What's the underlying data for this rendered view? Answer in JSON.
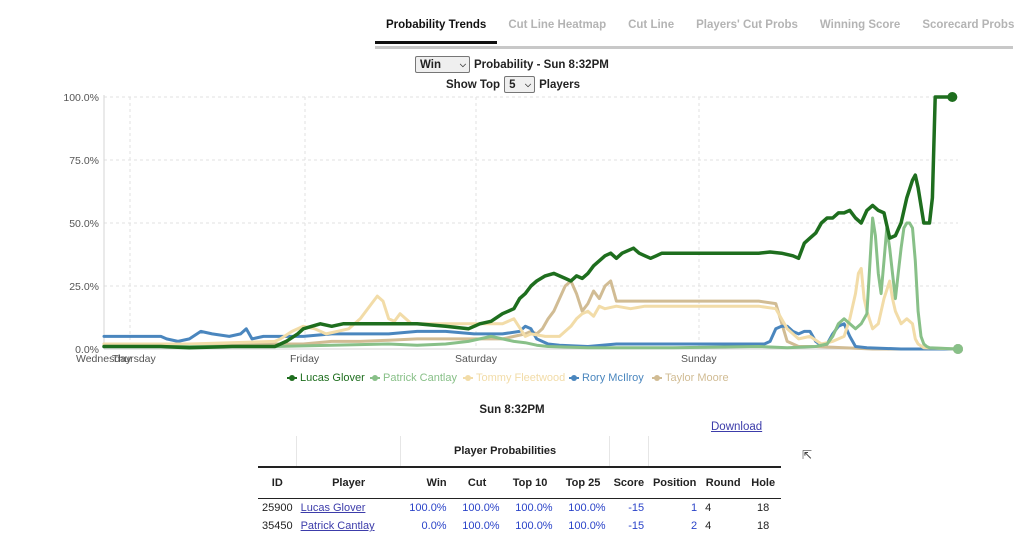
{
  "tabs": [
    {
      "label": "Probability Trends",
      "active": true
    },
    {
      "label": "Cut Line Heatmap",
      "active": false
    },
    {
      "label": "Cut Line",
      "active": false
    },
    {
      "label": "Players' Cut Probs",
      "active": false
    },
    {
      "label": "Winning Score",
      "active": false
    },
    {
      "label": "Scorecard Probs",
      "active": false
    }
  ],
  "controls": {
    "metric_value": "Win",
    "title_text": "Probability - Sun 8:32PM",
    "show_top_label": "Show Top",
    "top_value": "5",
    "players_label": "Players"
  },
  "chart_data": {
    "type": "line",
    "x_labels": [
      "Wednesday",
      "Thursday",
      "Friday",
      "Saturday",
      "Sunday"
    ],
    "y_ticks": [
      "0.0%",
      "25.0%",
      "50.0%",
      "75.0%",
      "100.0%"
    ],
    "ylim": [
      0,
      100
    ],
    "grid": true,
    "legend_position": "bottom",
    "series": [
      {
        "name": "Lucas Glover",
        "color": "#1e6e1e",
        "points": [
          [
            0,
            1
          ],
          [
            20,
            1
          ],
          [
            30,
            0.5
          ],
          [
            45,
            1
          ],
          [
            60,
            1
          ],
          [
            62,
            2
          ],
          [
            64,
            3
          ],
          [
            68,
            6
          ],
          [
            70,
            8
          ],
          [
            73,
            9
          ],
          [
            76,
            10
          ],
          [
            80,
            9
          ],
          [
            84,
            10
          ],
          [
            90,
            10
          ],
          [
            100,
            10
          ],
          [
            110,
            10
          ],
          [
            120,
            9
          ],
          [
            128,
            8
          ],
          [
            132,
            10
          ],
          [
            136,
            11
          ],
          [
            140,
            14
          ],
          [
            144,
            16
          ],
          [
            146,
            20
          ],
          [
            148,
            22
          ],
          [
            150,
            25
          ],
          [
            152,
            27
          ],
          [
            155,
            29
          ],
          [
            158,
            30
          ],
          [
            162,
            28
          ],
          [
            164,
            27
          ],
          [
            166,
            29
          ],
          [
            168,
            28
          ],
          [
            170,
            30
          ],
          [
            172,
            33
          ],
          [
            174,
            35
          ],
          [
            176,
            37
          ],
          [
            178,
            38
          ],
          [
            180,
            36
          ],
          [
            182,
            38
          ],
          [
            184,
            39
          ],
          [
            186,
            40
          ],
          [
            188,
            38
          ],
          [
            190,
            37
          ],
          [
            192,
            36
          ],
          [
            194,
            37
          ],
          [
            196,
            38
          ],
          [
            200,
            38
          ],
          [
            210,
            38
          ],
          [
            230,
            38
          ],
          [
            234,
            38.5
          ],
          [
            238,
            38
          ],
          [
            242,
            37
          ],
          [
            244,
            36
          ],
          [
            246,
            42
          ],
          [
            248,
            44
          ],
          [
            250,
            46
          ],
          [
            252,
            50
          ],
          [
            254,
            52
          ],
          [
            256,
            52
          ],
          [
            258,
            54
          ],
          [
            260,
            54
          ],
          [
            262,
            55
          ],
          [
            264,
            52
          ],
          [
            266,
            50
          ],
          [
            268,
            55
          ],
          [
            270,
            57
          ],
          [
            272,
            55
          ],
          [
            274,
            54
          ],
          [
            276,
            44
          ],
          [
            278,
            45
          ],
          [
            280,
            50
          ],
          [
            282,
            60
          ],
          [
            284,
            67
          ],
          [
            285,
            69
          ],
          [
            286,
            64
          ],
          [
            288,
            50
          ],
          [
            289,
            50
          ],
          [
            290,
            50
          ],
          [
            291,
            60
          ],
          [
            292,
            100
          ],
          [
            294,
            100
          ],
          [
            298,
            100
          ]
        ]
      },
      {
        "name": "Patrick Cantlay",
        "color": "#88c088",
        "points": [
          [
            0,
            1
          ],
          [
            20,
            1
          ],
          [
            40,
            1
          ],
          [
            60,
            1
          ],
          [
            80,
            1.5
          ],
          [
            100,
            2
          ],
          [
            110,
            1.5
          ],
          [
            120,
            2
          ],
          [
            128,
            3
          ],
          [
            132,
            4
          ],
          [
            136,
            5
          ],
          [
            140,
            4
          ],
          [
            144,
            3
          ],
          [
            148,
            2.5
          ],
          [
            152,
            1.5
          ],
          [
            156,
            1
          ],
          [
            170,
            0.5
          ],
          [
            200,
            0.5
          ],
          [
            230,
            1
          ],
          [
            240,
            0.5
          ],
          [
            250,
            1
          ],
          [
            254,
            2
          ],
          [
            256,
            5
          ],
          [
            258,
            10
          ],
          [
            260,
            12
          ],
          [
            262,
            10
          ],
          [
            264,
            8
          ],
          [
            266,
            10
          ],
          [
            268,
            14
          ],
          [
            270,
            52
          ],
          [
            271,
            45
          ],
          [
            272,
            30
          ],
          [
            273,
            22
          ],
          [
            274,
            35
          ],
          [
            275,
            48
          ],
          [
            276,
            40
          ],
          [
            277,
            30
          ],
          [
            278,
            20
          ],
          [
            279,
            30
          ],
          [
            280,
            40
          ],
          [
            281,
            48
          ],
          [
            282,
            50
          ],
          [
            283,
            50
          ],
          [
            284,
            48
          ],
          [
            285,
            35
          ],
          [
            286,
            15
          ],
          [
            287,
            5
          ],
          [
            288,
            2
          ],
          [
            289,
            1
          ],
          [
            290,
            0.5
          ],
          [
            300,
            0
          ]
        ]
      },
      {
        "name": "Tommy Fleetwood",
        "color": "#f2dca8",
        "points": [
          [
            0,
            2
          ],
          [
            30,
            2
          ],
          [
            60,
            3
          ],
          [
            62,
            4
          ],
          [
            66,
            7
          ],
          [
            70,
            9
          ],
          [
            74,
            8
          ],
          [
            78,
            6
          ],
          [
            82,
            7
          ],
          [
            86,
            8
          ],
          [
            90,
            12
          ],
          [
            94,
            18
          ],
          [
            96,
            21
          ],
          [
            98,
            19
          ],
          [
            100,
            12
          ],
          [
            102,
            11
          ],
          [
            104,
            14
          ],
          [
            108,
            10
          ],
          [
            112,
            10
          ],
          [
            120,
            10
          ],
          [
            130,
            10
          ],
          [
            140,
            10
          ],
          [
            144,
            12
          ],
          [
            148,
            5
          ],
          [
            150,
            6
          ],
          [
            155,
            5
          ],
          [
            160,
            5
          ],
          [
            164,
            9
          ],
          [
            166,
            12
          ],
          [
            168,
            14
          ],
          [
            170,
            15
          ],
          [
            172,
            13
          ],
          [
            174,
            17
          ],
          [
            176,
            16
          ],
          [
            180,
            17
          ],
          [
            185,
            16
          ],
          [
            190,
            17
          ],
          [
            200,
            17
          ],
          [
            210,
            17
          ],
          [
            230,
            17
          ],
          [
            236,
            16
          ],
          [
            240,
            8
          ],
          [
            244,
            4
          ],
          [
            248,
            5
          ],
          [
            252,
            2
          ],
          [
            256,
            3
          ],
          [
            260,
            5
          ],
          [
            262,
            12
          ],
          [
            264,
            22
          ],
          [
            265,
            30
          ],
          [
            266,
            32
          ],
          [
            267,
            20
          ],
          [
            268,
            15
          ],
          [
            270,
            8
          ],
          [
            272,
            10
          ],
          [
            274,
            20
          ],
          [
            276,
            27
          ],
          [
            277,
            20
          ],
          [
            278,
            15
          ],
          [
            280,
            10
          ],
          [
            282,
            12
          ],
          [
            284,
            10
          ],
          [
            285,
            4
          ],
          [
            286,
            2
          ],
          [
            288,
            0.5
          ],
          [
            300,
            0
          ]
        ]
      },
      {
        "name": "Rory McIlroy",
        "color": "#4a86be",
        "points": [
          [
            0,
            5
          ],
          [
            10,
            5
          ],
          [
            20,
            5
          ],
          [
            22,
            4
          ],
          [
            26,
            3
          ],
          [
            30,
            4
          ],
          [
            34,
            7
          ],
          [
            38,
            6
          ],
          [
            44,
            5
          ],
          [
            48,
            6
          ],
          [
            50,
            8
          ],
          [
            52,
            4
          ],
          [
            56,
            5
          ],
          [
            60,
            5
          ],
          [
            70,
            5
          ],
          [
            80,
            6
          ],
          [
            90,
            6
          ],
          [
            100,
            6
          ],
          [
            110,
            7
          ],
          [
            120,
            7
          ],
          [
            130,
            6
          ],
          [
            140,
            6
          ],
          [
            146,
            7
          ],
          [
            148,
            9
          ],
          [
            150,
            8
          ],
          [
            152,
            4
          ],
          [
            156,
            2
          ],
          [
            160,
            1.5
          ],
          [
            170,
            1
          ],
          [
            180,
            2
          ],
          [
            190,
            2
          ],
          [
            200,
            2
          ],
          [
            210,
            2
          ],
          [
            220,
            2
          ],
          [
            232,
            2
          ],
          [
            234,
            3
          ],
          [
            236,
            8
          ],
          [
            238,
            9
          ],
          [
            240,
            9
          ],
          [
            242,
            7
          ],
          [
            244,
            6
          ],
          [
            246,
            7
          ],
          [
            248,
            7
          ],
          [
            250,
            3
          ],
          [
            252,
            1.5
          ],
          [
            254,
            2
          ],
          [
            256,
            6
          ],
          [
            258,
            9
          ],
          [
            260,
            10
          ],
          [
            262,
            5
          ],
          [
            264,
            1
          ],
          [
            268,
            0.5
          ],
          [
            280,
            0
          ],
          [
            300,
            0
          ]
        ]
      },
      {
        "name": "Taylor Moore",
        "color": "#d1bc94",
        "points": [
          [
            0,
            2
          ],
          [
            20,
            2
          ],
          [
            30,
            1.5
          ],
          [
            40,
            1.5
          ],
          [
            60,
            2
          ],
          [
            70,
            2
          ],
          [
            80,
            3
          ],
          [
            90,
            3
          ],
          [
            100,
            3.5
          ],
          [
            110,
            4
          ],
          [
            120,
            4
          ],
          [
            130,
            4
          ],
          [
            140,
            4
          ],
          [
            144,
            5
          ],
          [
            148,
            6
          ],
          [
            150,
            7
          ],
          [
            152,
            6
          ],
          [
            154,
            8
          ],
          [
            156,
            12
          ],
          [
            158,
            15
          ],
          [
            160,
            20
          ],
          [
            162,
            25
          ],
          [
            164,
            27
          ],
          [
            166,
            22
          ],
          [
            168,
            15
          ],
          [
            170,
            18
          ],
          [
            172,
            23
          ],
          [
            174,
            20
          ],
          [
            176,
            25
          ],
          [
            178,
            27
          ],
          [
            180,
            19
          ],
          [
            190,
            19
          ],
          [
            200,
            19
          ],
          [
            210,
            19
          ],
          [
            220,
            19
          ],
          [
            230,
            19
          ],
          [
            236,
            18
          ],
          [
            240,
            3
          ],
          [
            244,
            1
          ],
          [
            250,
            1
          ],
          [
            260,
            0.5
          ],
          [
            270,
            0
          ],
          [
            300,
            0
          ]
        ]
      }
    ]
  },
  "legend": [
    {
      "name": "Lucas Glover",
      "color": "#1e6e1e"
    },
    {
      "name": "Patrick Cantlay",
      "color": "#88c088"
    },
    {
      "name": "Tommy Fleetwood",
      "color": "#f2dca8"
    },
    {
      "name": "Rory McIlroy",
      "color": "#4a86be"
    },
    {
      "name": "Taylor Moore",
      "color": "#d1bc94"
    }
  ],
  "timestamp_title": "Sun 8:32PM",
  "download_label": "Download",
  "table": {
    "group_label": "Player Probabilities",
    "columns": [
      "ID",
      "Player",
      "Win",
      "Cut",
      "Top 10",
      "Top 25",
      "Score",
      "Position",
      "Round",
      "Hole"
    ],
    "rows": [
      {
        "id": "25900",
        "player": "Lucas Glover",
        "win": "100.0%",
        "cut": "100.0%",
        "top10": "100.0%",
        "top25": "100.0%",
        "score": "-15",
        "position": "1",
        "round": "4",
        "hole": "18"
      },
      {
        "id": "35450",
        "player": "Patrick Cantlay",
        "win": "0.0%",
        "cut": "100.0%",
        "top10": "100.0%",
        "top25": "100.0%",
        "score": "-15",
        "position": "2",
        "round": "4",
        "hole": "18"
      }
    ]
  }
}
